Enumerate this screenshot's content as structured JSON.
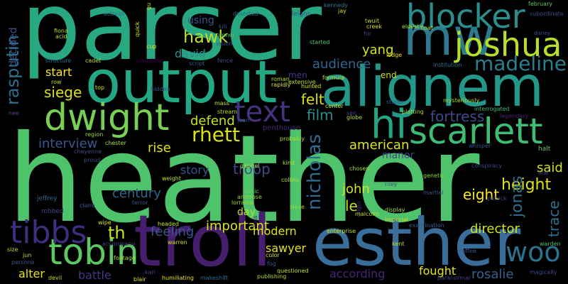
{
  "words": [
    {
      "text": "heather",
      "color": "#4ec36b"
    },
    {
      "text": "parser",
      "color": "#27a882"
    },
    {
      "text": "output",
      "color": "#22a884"
    },
    {
      "text": "alignem",
      "color": "#23978a"
    },
    {
      "text": "esther",
      "color": "#3a6e9a"
    },
    {
      "text": "troll",
      "color": "#451e6e"
    },
    {
      "text": "mw",
      "color": "#2b7a8e"
    },
    {
      "text": "dwight",
      "color": "#77cf55"
    },
    {
      "text": "tobin",
      "color": "#5dc863"
    },
    {
      "text": "blocker",
      "color": "#2a8e8c"
    },
    {
      "text": "joshua",
      "color": "#b8de29"
    },
    {
      "text": "scarlett",
      "color": "#3fbc73"
    },
    {
      "text": "hi",
      "color": "#22a785"
    },
    {
      "text": "text",
      "color": "#46327e"
    },
    {
      "text": "tibbs",
      "color": "#3b2f80"
    },
    {
      "text": "woo",
      "color": "#2c718e"
    },
    {
      "text": "madeline",
      "color": "#2a7f8e"
    },
    {
      "text": "nicholas",
      "color": "#2f6b8e"
    },
    {
      "text": "rhett",
      "color": "#d8e219"
    },
    {
      "text": "rasputin",
      "color": "#2d708e"
    },
    {
      "text": "hawk",
      "color": "#b8de29"
    },
    {
      "text": "david",
      "color": "#2c8d8c"
    },
    {
      "text": "audience",
      "color": "#31668e"
    },
    {
      "text": "yang",
      "color": "#d2e21b"
    },
    {
      "text": "siege",
      "color": "#dde318"
    },
    {
      "text": "felt",
      "color": "#d8e219"
    },
    {
      "text": "film",
      "color": "#2a8e8c"
    },
    {
      "text": "fortress",
      "color": "#3e4a89"
    },
    {
      "text": "defend",
      "color": "#c6e021"
    },
    {
      "text": "start",
      "color": "#fde725"
    },
    {
      "text": "interview",
      "color": "#38588c"
    },
    {
      "text": "rise",
      "color": "#dce319"
    },
    {
      "text": "american",
      "color": "#e0e318"
    },
    {
      "text": "said",
      "color": "#d5e21a"
    },
    {
      "text": "height",
      "color": "#dde318"
    },
    {
      "text": "eight",
      "color": "#fde725"
    },
    {
      "text": "story",
      "color": "#39568c"
    },
    {
      "text": "troop",
      "color": "#3e4c8a"
    },
    {
      "text": "century",
      "color": "#32648e"
    },
    {
      "text": "john",
      "color": "#d2e21b"
    },
    {
      "text": "le",
      "color": "#c2df23"
    },
    {
      "text": "jonas",
      "color": "#2e6e8e"
    },
    {
      "text": "trace",
      "color": "#2c728e"
    },
    {
      "text": "th",
      "color": "#c8e020"
    },
    {
      "text": "feeling",
      "color": "#39558c"
    },
    {
      "text": "important",
      "color": "#d8e219"
    },
    {
      "text": "director",
      "color": "#d2e21b"
    },
    {
      "text": "modern",
      "color": "#dde318"
    },
    {
      "text": "sawyer",
      "color": "#e2e418"
    },
    {
      "text": "according",
      "color": "#482576"
    },
    {
      "text": "fought",
      "color": "#e5e419"
    },
    {
      "text": "rosalie",
      "color": "#33638d"
    },
    {
      "text": "alter",
      "color": "#e2e418"
    },
    {
      "text": "battle",
      "color": "#453781"
    },
    {
      "text": "decided",
      "color": "#3a538b"
    },
    {
      "text": "using",
      "color": "#39558c"
    },
    {
      "text": "men",
      "color": "#433e85"
    },
    {
      "text": "end",
      "color": "#d0e11c"
    },
    {
      "text": "penthouse",
      "color": "#482576"
    },
    {
      "text": "day",
      "color": "#b2dd2d"
    },
    {
      "text": "manor",
      "color": "#404688"
    },
    {
      "text": "robbed",
      "color": "#404688"
    },
    {
      "text": "jeffrey",
      "color": "#33638d"
    },
    {
      "text": "activist",
      "color": "#2f6c8e"
    },
    {
      "text": "deserted",
      "color": "#2c718e"
    },
    {
      "text": "feigns",
      "color": "#3e4a89"
    },
    {
      "text": "runner",
      "color": "#5ec962"
    },
    {
      "text": "february",
      "color": "#5ec962"
    },
    {
      "text": "gabriel",
      "color": "#9bd93c"
    },
    {
      "text": "collins",
      "color": "#b5de2b"
    },
    {
      "text": "genetic",
      "color": "#8fd744"
    },
    {
      "text": "martial",
      "color": "#3b528b"
    },
    {
      "text": "patrick",
      "color": "#414487"
    },
    {
      "text": "warden",
      "color": "#4ac16d"
    },
    {
      "text": "paranormal",
      "color": "#404588"
    },
    {
      "text": "publishing",
      "color": "#b5de2b"
    },
    {
      "text": "questioned",
      "color": "#bddf26"
    },
    {
      "text": "humiliating",
      "color": "#e2e418"
    },
    {
      "text": "makeshift",
      "color": "#31678e"
    },
    {
      "text": "terror",
      "color": "#3a548c"
    },
    {
      "text": "accompany",
      "color": "#414487"
    },
    {
      "text": "conspiracy",
      "color": "#3f4788"
    },
    {
      "text": "whisper",
      "color": "#3a538b"
    },
    {
      "text": "legendary",
      "color": "#482677"
    },
    {
      "text": "interrogated",
      "color": "#35b779"
    },
    {
      "text": "examination",
      "color": "#38588c"
    },
    {
      "text": "extensive",
      "color": "#c2df23"
    },
    {
      "text": "formula",
      "color": "#b5de2b"
    },
    {
      "text": "institution",
      "color": "#2e6f8e"
    },
    {
      "text": "mysteriously",
      "color": "#addc30"
    },
    {
      "text": "subordinate",
      "color": "#3e4989"
    },
    {
      "text": "disney",
      "color": "#3b528b"
    },
    {
      "text": "kennedy",
      "color": "#2a788e"
    },
    {
      "text": "probably",
      "color": "#b2dd2d"
    },
    {
      "text": "display",
      "color": "#a8db34"
    },
    {
      "text": "imperial",
      "color": "#c2df23"
    },
    {
      "text": "enterprise",
      "color": "#c8e020"
    },
    {
      "text": "lorraine",
      "color": "#a2da37"
    },
    {
      "text": "ambrose",
      "color": "#9bd93c"
    },
    {
      "text": "basic",
      "color": "#6ccd5a"
    },
    {
      "text": "chosen",
      "color": "#a8db34"
    },
    {
      "text": "origin",
      "color": "#4d2c7b"
    },
    {
      "text": "slave",
      "color": "#a5db36"
    },
    {
      "text": "script",
      "color": "#375b8d"
    },
    {
      "text": "vision",
      "color": "#3b528b"
    },
    {
      "text": "started",
      "color": "#4ac16d"
    },
    {
      "text": "rapidly",
      "color": "#dde318"
    },
    {
      "text": "slaughter",
      "color": "#440154"
    },
    {
      "text": "structure",
      "color": "#2f6c8e"
    },
    {
      "text": "hidden",
      "color": "#3a548c"
    },
    {
      "text": "cadet",
      "color": "#b5de2b"
    },
    {
      "text": "fence",
      "color": "#3e4989"
    },
    {
      "text": "roman",
      "color": "#b5de2b"
    },
    {
      "text": "studio",
      "color": "#3b528b"
    },
    {
      "text": "plotting",
      "color": "#a5db36"
    },
    {
      "text": "mass",
      "color": "#c8e020"
    },
    {
      "text": "stream",
      "color": "#b5de2b"
    },
    {
      "text": "joan",
      "color": "#3a548c"
    },
    {
      "text": "region",
      "color": "#9bd93c"
    },
    {
      "text": "chester",
      "color": "#a8db34"
    },
    {
      "text": "cheyenne",
      "color": "#3f4788"
    },
    {
      "text": "proud",
      "color": "#3b528b"
    },
    {
      "text": "weight",
      "color": "#c2df23"
    },
    {
      "text": "claire",
      "color": "#375b8d"
    },
    {
      "text": "headed",
      "color": "#c8e020"
    },
    {
      "text": "wipe",
      "color": "#dde318"
    },
    {
      "text": "warren",
      "color": "#c2df23"
    },
    {
      "text": "footage",
      "color": "#addc30"
    },
    {
      "text": "devil",
      "color": "#c2df23"
    },
    {
      "text": "blair",
      "color": "#dde318"
    },
    {
      "text": "kari",
      "color": "#3e4a89"
    },
    {
      "text": "persona",
      "color": "#3a548c"
    },
    {
      "text": "jun",
      "color": "#b8de29"
    },
    {
      "text": "size",
      "color": "#b5de2b"
    },
    {
      "text": "coffee",
      "color": "#3a548c"
    },
    {
      "text": "halt",
      "color": "#5ec962"
    },
    {
      "text": "magically",
      "color": "#3e4989"
    },
    {
      "text": "kind",
      "color": "#b5de2b"
    },
    {
      "text": "color",
      "color": "#dde318"
    },
    {
      "text": "fog",
      "color": "#3b528b"
    },
    {
      "text": "kent",
      "color": "#b5de2b"
    },
    {
      "text": "malcolm",
      "color": "#b8de29"
    },
    {
      "text": "riley",
      "color": "#3b528b"
    },
    {
      "text": "line",
      "color": "#3e4989"
    },
    {
      "text": "hunted",
      "color": "#dde318"
    },
    {
      "text": "center",
      "color": "#c8e020"
    },
    {
      "text": "globe",
      "color": "#b5de2b"
    },
    {
      "text": "lodge",
      "color": "#dde318"
    },
    {
      "text": "eldest",
      "color": "#b5de2b"
    },
    {
      "text": "creek",
      "color": "#dde318"
    },
    {
      "text": "twuit",
      "color": "#b8de29"
    },
    {
      "text": "float",
      "color": "#b5de2b"
    },
    {
      "text": "fur",
      "color": "#3e4989"
    },
    {
      "text": "gu",
      "color": "#c2df23"
    },
    {
      "text": "quick",
      "color": "#dde318"
    },
    {
      "text": "cup",
      "color": "#dde318"
    },
    {
      "text": "top",
      "color": "#c8e020"
    },
    {
      "text": "row",
      "color": "#b5de2b"
    },
    {
      "text": "fiona",
      "color": "#b5de2b"
    },
    {
      "text": "acid",
      "color": "#c2df23"
    },
    {
      "text": "kill",
      "color": "#3a548c"
    },
    {
      "text": "jay",
      "color": "#c8e020"
    },
    {
      "text": "sen",
      "color": "#3e4989"
    },
    {
      "text": "ross",
      "color": "#482576"
    },
    {
      "text": "nee",
      "color": "#3e4989"
    }
  ]
}
